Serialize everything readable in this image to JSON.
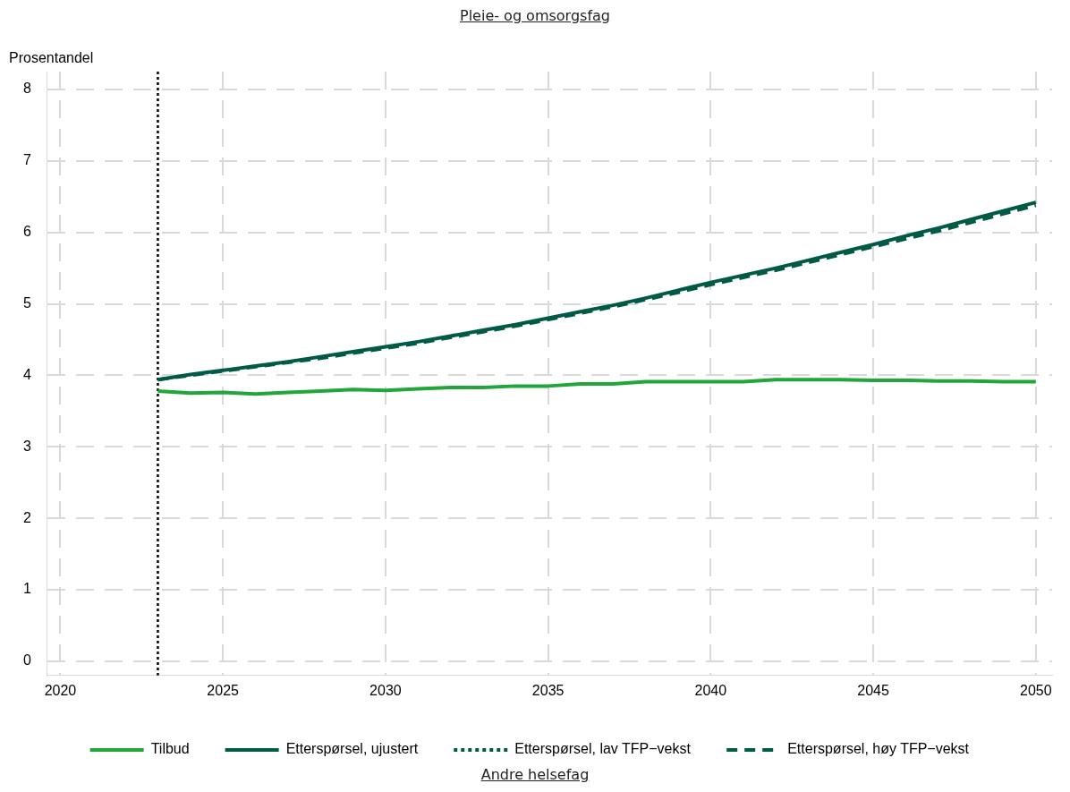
{
  "chart_data": {
    "type": "line",
    "title": "Pleie- og omsorgsfag",
    "ylabel": "Prosentandel",
    "annotations": [
      "Andre helsefag"
    ],
    "x": [
      2023,
      2024,
      2025,
      2026,
      2027,
      2028,
      2029,
      2030,
      2031,
      2032,
      2033,
      2034,
      2035,
      2036,
      2037,
      2038,
      2039,
      2040,
      2041,
      2042,
      2043,
      2044,
      2045,
      2046,
      2047,
      2048,
      2049,
      2050
    ],
    "series": [
      {
        "name": "Tilbud",
        "color": "#22a63a",
        "line_style": "solid",
        "values": [
          3.78,
          3.75,
          3.76,
          3.74,
          3.76,
          3.78,
          3.8,
          3.79,
          3.81,
          3.83,
          3.83,
          3.85,
          3.85,
          3.88,
          3.88,
          3.91,
          3.91,
          3.91,
          3.91,
          3.94,
          3.94,
          3.94,
          3.93,
          3.93,
          3.92,
          3.92,
          3.91,
          3.91
        ]
      },
      {
        "name": "Etterspørsel, ujustert",
        "color": "#005a46",
        "line_style": "solid",
        "values": [
          3.94,
          4.01,
          4.07,
          4.13,
          4.19,
          4.26,
          4.33,
          4.4,
          4.47,
          4.55,
          4.63,
          4.71,
          4.8,
          4.89,
          4.98,
          5.08,
          5.19,
          5.3,
          5.4,
          5.5,
          5.61,
          5.72,
          5.83,
          5.95,
          6.06,
          6.18,
          6.3,
          6.42
        ]
      },
      {
        "name": "Etterspørsel, lav TFP−vekst",
        "color": "#005a46",
        "line_style": "dotted",
        "values": [
          null,
          null,
          null,
          null,
          null,
          null,
          null,
          null,
          null,
          null,
          null,
          null,
          null,
          null,
          null,
          null,
          null,
          null,
          null,
          null,
          null,
          null,
          null,
          null,
          null,
          null,
          null,
          null
        ]
      },
      {
        "name": "Etterspørsel, høy TFP−vekst",
        "color": "#005a46",
        "line_style": "dashed",
        "values": [
          3.94,
          4.0,
          4.06,
          4.12,
          4.18,
          4.24,
          4.31,
          4.38,
          4.45,
          4.53,
          4.61,
          4.69,
          4.78,
          4.87,
          4.96,
          5.06,
          5.16,
          5.27,
          5.37,
          5.47,
          5.58,
          5.69,
          5.8,
          5.91,
          6.02,
          6.14,
          6.26,
          6.38
        ]
      }
    ],
    "xlim": [
      2019.6,
      2050.5
    ],
    "ylim": [
      -0.2,
      8.25
    ],
    "xticks": [
      2020,
      2025,
      2030,
      2035,
      2040,
      2045,
      2050
    ],
    "yticks": [
      0,
      1,
      2,
      3,
      4,
      5,
      6,
      7,
      8
    ],
    "ref_lines": [
      {
        "axis": "x",
        "value": 2023,
        "color": "#000000",
        "line_style": "dotted"
      }
    ],
    "grid": true,
    "legend": "bottom",
    "marker": "none"
  }
}
